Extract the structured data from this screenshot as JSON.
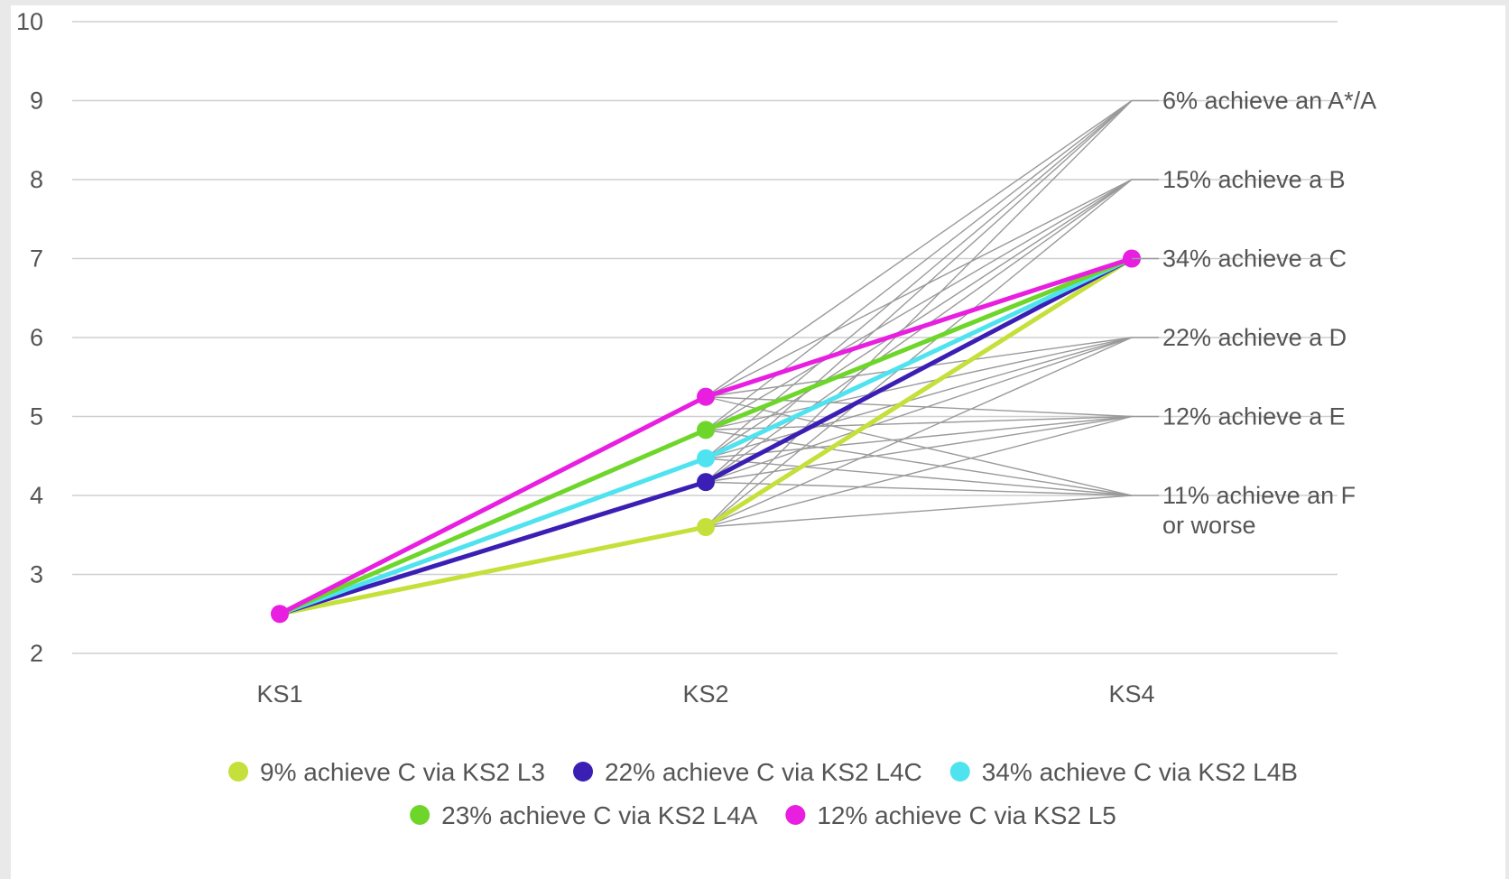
{
  "chart_data": {
    "type": "line",
    "title": "",
    "xlabel": "",
    "ylabel": "",
    "categories": [
      "KS1",
      "KS2",
      "KS4"
    ],
    "ylim": [
      2,
      10
    ],
    "yticks": [
      2,
      3,
      4,
      5,
      6,
      7,
      8,
      9,
      10
    ],
    "grid": true,
    "legend_position": "bottom",
    "series": [
      {
        "name": "9% achieve C via KS2 L3",
        "color": "#c5e03a",
        "values": [
          2.5,
          3.6,
          7
        ]
      },
      {
        "name": "22% achieve C via KS2 L4C",
        "color": "#3b1fb5",
        "values": [
          2.5,
          4.17,
          7
        ]
      },
      {
        "name": "34% achieve C via KS2 L4B",
        "color": "#4fe3ef",
        "values": [
          2.5,
          4.47,
          7
        ]
      },
      {
        "name": "23% achieve C via KS2 L4A",
        "color": "#6ed62a",
        "values": [
          2.5,
          4.83,
          7
        ]
      },
      {
        "name": "12% achieve C via KS2 L5",
        "color": "#e81ee0",
        "values": [
          2.5,
          5.25,
          7
        ]
      }
    ],
    "spread_lines": {
      "color": "#9a9a9a",
      "ks2_values": [
        3.6,
        4.17,
        4.47,
        4.83,
        5.25
      ],
      "ks4_values": [
        4,
        5,
        6,
        7,
        8,
        9
      ]
    },
    "outcome_labels": [
      {
        "y": 9,
        "lines": [
          "6% achieve an A*/A"
        ]
      },
      {
        "y": 8,
        "lines": [
          "15% achieve a B"
        ]
      },
      {
        "y": 7,
        "lines": [
          "34% achieve a C"
        ]
      },
      {
        "y": 6,
        "lines": [
          "22% achieve a D"
        ]
      },
      {
        "y": 5,
        "lines": [
          "12% achieve a E"
        ]
      },
      {
        "y": 4,
        "lines": [
          "11% achieve an F",
          "or worse"
        ]
      }
    ],
    "legend_rows": [
      [
        0,
        1,
        2
      ],
      [
        3,
        4
      ]
    ]
  }
}
